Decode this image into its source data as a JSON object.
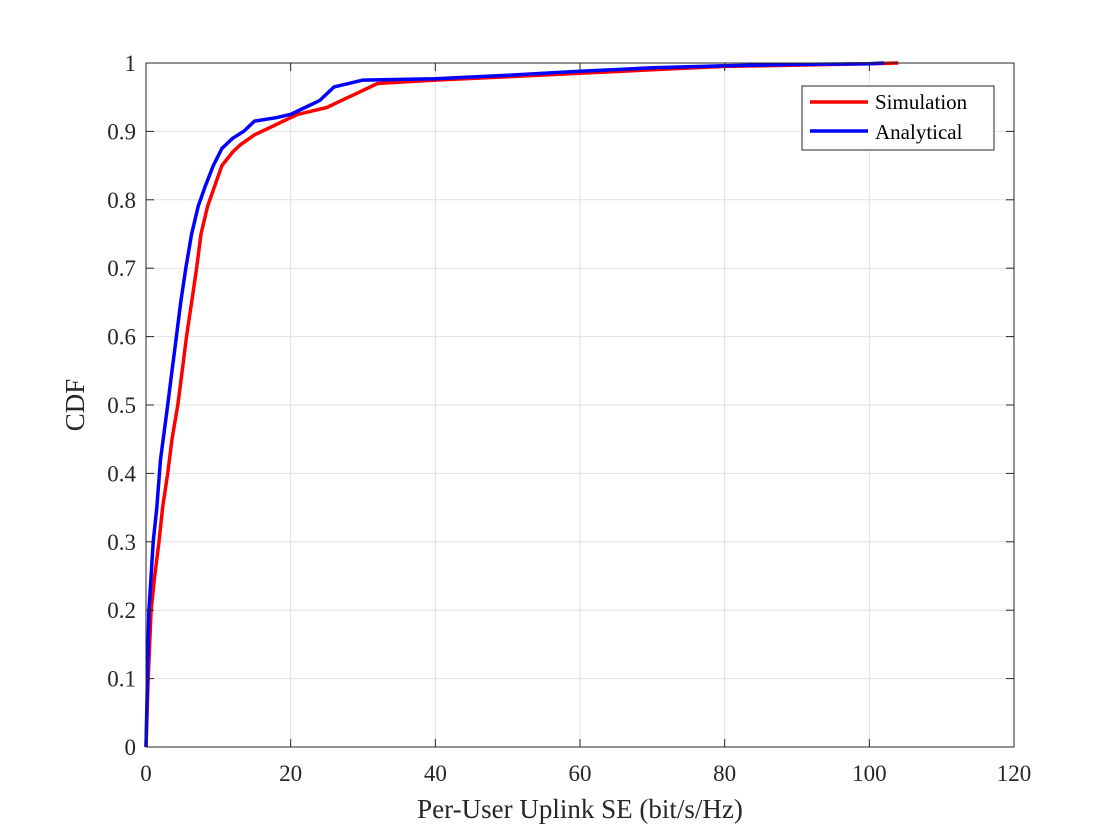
{
  "chart_data": {
    "type": "line",
    "xlabel": "Per-User Uplink SE (bit/s/Hz)",
    "ylabel": "CDF",
    "xlim": [
      0,
      120
    ],
    "ylim": [
      0,
      1
    ],
    "x_ticks": [
      0,
      20,
      40,
      60,
      80,
      100,
      120
    ],
    "y_ticks": [
      0,
      0.1,
      0.2,
      0.3,
      0.4,
      0.5,
      0.6,
      0.7,
      0.8,
      0.9,
      1
    ],
    "x_tick_labels": [
      "0",
      "20",
      "40",
      "60",
      "80",
      "100",
      "120"
    ],
    "y_tick_labels": [
      "0",
      "0.1",
      "0.2",
      "0.3",
      "0.4",
      "0.5",
      "0.6",
      "0.7",
      "0.8",
      "0.9",
      "1"
    ],
    "grid": true,
    "legend_position": "top-right",
    "series": [
      {
        "name": "Simulation",
        "color": "#ff0000",
        "x": [
          0,
          0.3,
          0.7,
          1.2,
          1.8,
          2.3,
          3.0,
          3.6,
          4.4,
          5.0,
          5.6,
          6.3,
          7.0,
          7.6,
          8.5,
          9.5,
          10.5,
          12.0,
          13.0,
          15.0,
          17.0,
          19.0,
          21.0,
          23.0,
          25.0,
          27.0,
          29.0,
          32.0,
          40.0,
          50.0,
          60.0,
          70.0,
          80.0,
          90.0,
          100.0,
          104.0
        ],
        "y": [
          0,
          0.1,
          0.2,
          0.25,
          0.3,
          0.35,
          0.4,
          0.45,
          0.5,
          0.55,
          0.6,
          0.65,
          0.7,
          0.75,
          0.79,
          0.82,
          0.85,
          0.87,
          0.88,
          0.895,
          0.905,
          0.915,
          0.925,
          0.93,
          0.935,
          0.945,
          0.955,
          0.97,
          0.975,
          0.98,
          0.985,
          0.99,
          0.995,
          0.997,
          0.999,
          1.0
        ]
      },
      {
        "name": "Analytical",
        "color": "#0000ff",
        "x": [
          0,
          0.2,
          0.4,
          0.7,
          1.0,
          1.5,
          2.0,
          2.5,
          3.0,
          3.6,
          4.2,
          4.8,
          5.5,
          6.3,
          7.2,
          8.2,
          9.3,
          10.5,
          12.0,
          13.5,
          15.0,
          18.0,
          20.0,
          22.0,
          24.0,
          26.0,
          30.0,
          40.0,
          50.0,
          60.0,
          70.0,
          80.0,
          90.0,
          100.0,
          102.0
        ],
        "y": [
          0,
          0.1,
          0.2,
          0.25,
          0.3,
          0.35,
          0.42,
          0.46,
          0.5,
          0.55,
          0.6,
          0.65,
          0.7,
          0.75,
          0.79,
          0.82,
          0.85,
          0.875,
          0.89,
          0.9,
          0.915,
          0.92,
          0.925,
          0.935,
          0.945,
          0.965,
          0.975,
          0.977,
          0.982,
          0.988,
          0.993,
          0.996,
          0.998,
          0.999,
          1.0
        ]
      }
    ]
  }
}
